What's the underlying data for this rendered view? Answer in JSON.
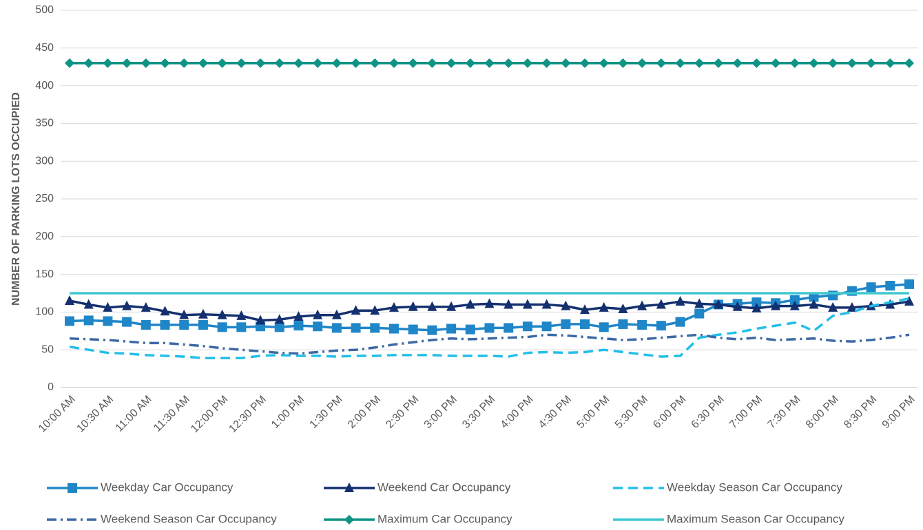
{
  "chart_data": {
    "type": "line",
    "y_label": "NUMBER OF PARKING LOTS OCCUPIED",
    "categories": [
      "10:00 AM",
      null,
      "10:30 AM",
      null,
      "11:00 AM",
      null,
      "11:30 AM",
      null,
      "12:00 PM",
      null,
      "12:30 PM",
      null,
      "1:00 PM",
      null,
      "1:30 PM",
      null,
      "2:00 PM",
      null,
      "2:30 PM",
      null,
      "3:00 PM",
      null,
      "3:30 PM",
      null,
      "4:00 PM",
      null,
      "4:30 PM",
      null,
      "5:00 PM",
      null,
      "5:30 PM",
      null,
      "6:00 PM",
      null,
      "6:30 PM",
      null,
      "7:00 PM",
      null,
      "7:30 PM",
      null,
      "8:00 PM",
      null,
      "8:30 PM",
      null,
      "9:00 PM"
    ],
    "ylim": [
      0,
      500
    ],
    "yticks": [
      0,
      50,
      100,
      150,
      200,
      250,
      300,
      350,
      400,
      450,
      500
    ],
    "grid": true,
    "legend": "bottom",
    "series": [
      {
        "name": "Weekday Car Occupancy",
        "color": "#1f86c8",
        "marker": "square",
        "dash": "solid",
        "values": [
          88,
          89,
          88,
          87,
          83,
          83,
          83,
          83,
          80,
          80,
          81,
          80,
          82,
          81,
          79,
          79,
          79,
          78,
          77,
          76,
          78,
          77,
          79,
          79,
          81,
          81,
          84,
          84,
          80,
          84,
          83,
          82,
          87,
          98,
          110,
          111,
          113,
          112,
          116,
          120,
          122,
          128,
          133,
          135,
          137
        ]
      },
      {
        "name": "Weekend Car Occupancy",
        "color": "#14306e",
        "marker": "triangle",
        "dash": "solid",
        "values": [
          115,
          110,
          106,
          108,
          106,
          101,
          96,
          97,
          96,
          95,
          89,
          90,
          94,
          96,
          96,
          102,
          102,
          106,
          107,
          107,
          107,
          110,
          111,
          110,
          110,
          110,
          108,
          103,
          106,
          104,
          108,
          110,
          114,
          111,
          110,
          107,
          105,
          108,
          108,
          110,
          106,
          106,
          108,
          110,
          114
        ]
      },
      {
        "name": "Weekday Season Car Occupancy",
        "color": "#22bfe8",
        "marker": "none",
        "dash": "dash",
        "values": [
          54,
          50,
          46,
          45,
          43,
          42,
          41,
          39,
          39,
          39,
          42,
          43,
          42,
          42,
          41,
          42,
          42,
          43,
          43,
          43,
          42,
          42,
          42,
          41,
          46,
          47,
          46,
          47,
          50,
          47,
          44,
          41,
          42,
          66,
          70,
          73,
          78,
          82,
          86,
          75,
          95,
          100,
          108,
          113,
          118
        ]
      },
      {
        "name": "Weekend Season Car Occupancy",
        "color": "#3d68a6",
        "marker": "none",
        "dash": "dashdot",
        "values": [
          65,
          64,
          63,
          61,
          59,
          59,
          57,
          55,
          52,
          50,
          48,
          46,
          45,
          47,
          49,
          50,
          53,
          57,
          60,
          63,
          65,
          64,
          65,
          66,
          67,
          70,
          69,
          67,
          65,
          63,
          64,
          66,
          68,
          70,
          66,
          64,
          66,
          63,
          64,
          65,
          62,
          61,
          63,
          66,
          70
        ]
      },
      {
        "name": "Maximum Car Occupancy",
        "color": "#0e9484",
        "marker": "diamond",
        "dash": "solid",
        "values": [
          430,
          430,
          430,
          430,
          430,
          430,
          430,
          430,
          430,
          430,
          430,
          430,
          430,
          430,
          430,
          430,
          430,
          430,
          430,
          430,
          430,
          430,
          430,
          430,
          430,
          430,
          430,
          430,
          430,
          430,
          430,
          430,
          430,
          430,
          430,
          430,
          430,
          430,
          430,
          430,
          430,
          430,
          430,
          430,
          430
        ]
      },
      {
        "name": "Maximum Season Car Occupancy",
        "color": "#3ec9d0",
        "marker": "none",
        "dash": "solid",
        "values": [
          125,
          125,
          125,
          125,
          125,
          125,
          125,
          125,
          125,
          125,
          125,
          125,
          125,
          125,
          125,
          125,
          125,
          125,
          125,
          125,
          125,
          125,
          125,
          125,
          125,
          125,
          125,
          125,
          125,
          125,
          125,
          125,
          125,
          125,
          125,
          125,
          125,
          125,
          125,
          125,
          125,
          125,
          125,
          125,
          125
        ]
      }
    ]
  }
}
